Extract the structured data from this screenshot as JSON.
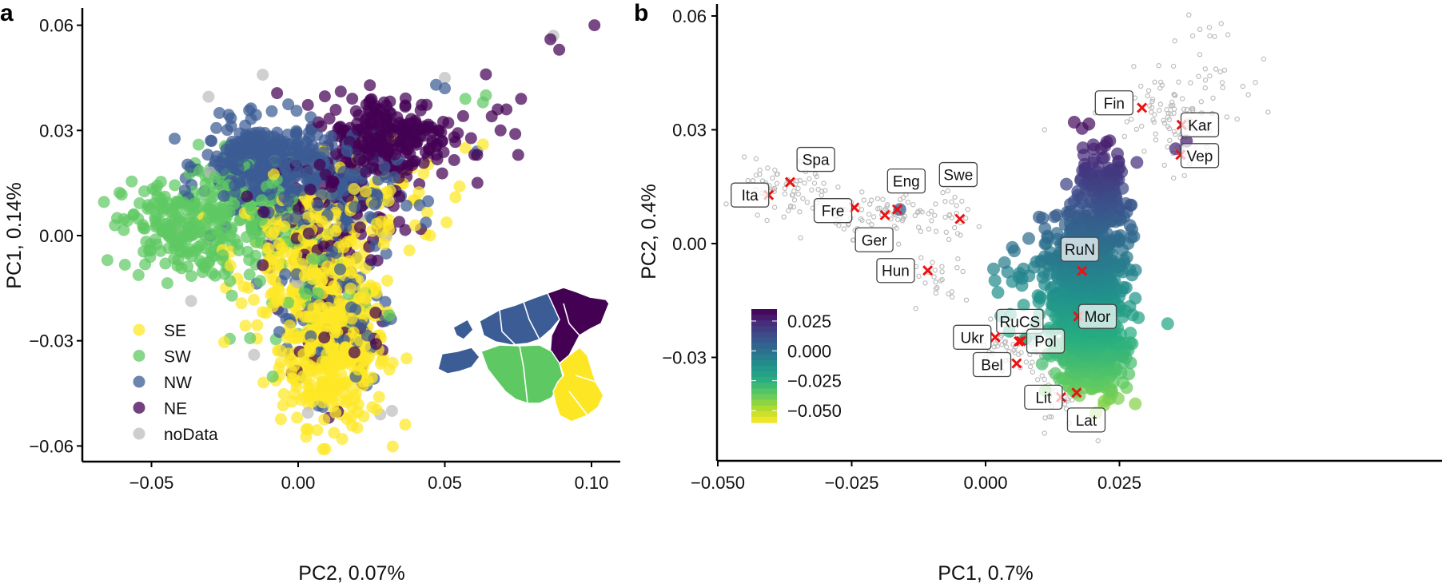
{
  "chart_data": [
    {
      "panel": "a",
      "type": "scatter",
      "title": "",
      "xlabel": "PC2, 0.07%",
      "ylabel": "PC1, 0.14%",
      "xlim": [
        -0.07,
        0.108
      ],
      "ylim": [
        -0.064,
        0.063
      ],
      "x_ticks": [
        -0.05,
        0.0,
        0.05,
        0.1
      ],
      "x_tick_labels": [
        "−0.05",
        "0.00",
        "0.05",
        "0.10"
      ],
      "y_ticks": [
        -0.06,
        -0.03,
        0.0,
        0.03,
        0.06
      ],
      "y_tick_labels": [
        "−0.06",
        "−0.03",
        "0.00",
        "0.03",
        "0.06"
      ],
      "grid": false,
      "legend_position": "bottom-left",
      "legend": [
        {
          "label": "SE",
          "color": "#FDE725"
        },
        {
          "label": "SW",
          "color": "#5EC962"
        },
        {
          "label": "NW",
          "color": "#3B5C94"
        },
        {
          "label": "NE",
          "color": "#440154"
        },
        {
          "label": "noData",
          "color": "#BEBEBE"
        }
      ],
      "series": [
        {
          "name": "SE",
          "color": "#FDE725",
          "clusters": [
            {
              "cx": 0.012,
              "cy": -0.032,
              "sx": 0.009,
              "sy": 0.011,
              "n": 420
            },
            {
              "cx": 0.002,
              "cy": -0.005,
              "sx": 0.012,
              "sy": 0.01,
              "n": 220
            },
            {
              "cx": 0.025,
              "cy": 0.01,
              "sx": 0.012,
              "sy": 0.01,
              "n": 70
            }
          ],
          "points": [
            [
              0.015,
              -0.058
            ],
            [
              0.055,
              0.014
            ],
            [
              0.063,
              0.026
            ],
            [
              0.045,
              0.0
            ],
            [
              0.057,
              0.025
            ]
          ]
        },
        {
          "name": "SW",
          "color": "#5EC962",
          "clusters": [
            {
              "cx": -0.04,
              "cy": 0.002,
              "sx": 0.01,
              "sy": 0.007,
              "n": 200
            },
            {
              "cx": -0.018,
              "cy": 0.008,
              "sx": 0.01,
              "sy": 0.008,
              "n": 140
            },
            {
              "cx": 0.005,
              "cy": -0.012,
              "sx": 0.01,
              "sy": 0.01,
              "n": 50
            }
          ],
          "points": [
            [
              -0.065,
              -0.007
            ],
            [
              0.063,
              0.038
            ],
            [
              0.064,
              0.04
            ],
            [
              0.057,
              0.039
            ]
          ]
        },
        {
          "name": "NW",
          "color": "#3B5C94",
          "clusters": [
            {
              "cx": -0.012,
              "cy": 0.02,
              "sx": 0.01,
              "sy": 0.006,
              "n": 380
            },
            {
              "cx": 0.01,
              "cy": 0.012,
              "sx": 0.012,
              "sy": 0.008,
              "n": 160
            },
            {
              "cx": 0.012,
              "cy": -0.02,
              "sx": 0.01,
              "sy": 0.012,
              "n": 90
            }
          ],
          "points": [
            [
              0.047,
              0.043
            ],
            [
              0.05,
              0.042
            ],
            [
              0.061,
              0.024
            ]
          ]
        },
        {
          "name": "NE",
          "color": "#440154",
          "clusters": [
            {
              "cx": 0.03,
              "cy": 0.028,
              "sx": 0.011,
              "sy": 0.006,
              "n": 260
            },
            {
              "cx": 0.012,
              "cy": 0.008,
              "sx": 0.012,
              "sy": 0.01,
              "n": 90
            },
            {
              "cx": 0.008,
              "cy": -0.025,
              "sx": 0.01,
              "sy": 0.012,
              "n": 40
            }
          ],
          "points": [
            [
              0.086,
              0.056
            ],
            [
              0.089,
              0.053
            ],
            [
              0.101,
              0.06
            ],
            [
              0.064,
              0.046
            ],
            [
              0.068,
              0.036
            ],
            [
              0.076,
              0.039
            ],
            [
              0.071,
              0.036
            ],
            [
              0.074,
              0.029
            ],
            [
              0.075,
              0.023
            ],
            [
              0.069,
              0.03
            ],
            [
              0.061,
              0.023
            ],
            [
              0.066,
              0.034
            ]
          ]
        },
        {
          "name": "noData",
          "color": "#BEBEBE",
          "clusters": [
            {
              "cx": 0.0,
              "cy": 0.0,
              "sx": 0.02,
              "sy": 0.02,
              "n": 14
            }
          ],
          "points": [
            [
              0.087,
              0.057
            ],
            [
              0.05,
              0.045
            ],
            [
              -0.03,
              0.018
            ],
            [
              0.028,
              -0.051
            ],
            [
              0.032,
              -0.05
            ],
            [
              0.03,
              0.0
            ],
            [
              -0.015,
              -0.034
            ]
          ]
        }
      ],
      "inset_map": {
        "description": "Map of Estonia colored by region",
        "regions": [
          {
            "region": "NW",
            "color": "#3B5C94"
          },
          {
            "region": "NE",
            "color": "#440154"
          },
          {
            "region": "SW",
            "color": "#5EC962"
          },
          {
            "region": "SE",
            "color": "#FDE725"
          }
        ]
      }
    },
    {
      "panel": "b",
      "type": "scatter",
      "title": "",
      "xlabel": "PC1, 0.7%",
      "ylabel": "PC2, 0.4%",
      "xlim": [
        -0.05,
        0.047
      ],
      "ylim": [
        -0.057,
        0.062
      ],
      "x_ticks": [
        -0.05,
        -0.025,
        0.0,
        0.025
      ],
      "x_tick_labels": [
        "−0.050",
        "−0.025",
        "0.000",
        "0.025"
      ],
      "y_ticks": [
        -0.03,
        0.0,
        0.03,
        0.06
      ],
      "y_tick_labels": [
        "−0.03",
        "0.00",
        "0.03",
        "0.06"
      ],
      "grid": false,
      "colorbar": {
        "position": "bottom-left",
        "palette": [
          "#440154",
          "#472D7B",
          "#3B528B",
          "#2C728E",
          "#21918C",
          "#28AE80",
          "#5EC962",
          "#ADDC30",
          "#FDE725"
        ],
        "range": [
          -0.06,
          0.035
        ],
        "ticks": [
          0.025,
          0.0,
          -0.025,
          -0.05
        ],
        "tick_labels": [
          "0.025",
          "0.000",
          "−0.025",
          "−0.050"
        ]
      },
      "estonian_clusters": [
        {
          "cx": 0.019,
          "cy": -0.012,
          "sx": 0.0035,
          "sy": 0.01,
          "n": 700,
          "value_from_y": true
        },
        {
          "cx": 0.02,
          "cy": -0.03,
          "sx": 0.003,
          "sy": 0.005,
          "n": 260,
          "value_from_y": true
        },
        {
          "cx": 0.021,
          "cy": 0.012,
          "sx": 0.003,
          "sy": 0.007,
          "n": 140,
          "value_from_y": true
        },
        {
          "cx": 0.01,
          "cy": -0.01,
          "sx": 0.006,
          "sy": 0.008,
          "n": 50,
          "value_from_y": true
        }
      ],
      "estonian_points": [
        [
          0.025,
          0.02
        ],
        [
          0.023,
          0.018
        ],
        [
          0.0375,
          0.027
        ],
        [
          0.0355,
          0.025
        ],
        [
          0.01,
          0.007
        ],
        [
          0.005,
          -0.001
        ],
        [
          -0.016,
          0.009
        ]
      ],
      "reference_cloud_color": "#BDBDBD",
      "reference_points_clusters": [
        {
          "cx": -0.037,
          "cy": 0.014,
          "sx": 0.004,
          "sy": 0.004,
          "n": 70
        },
        {
          "cx": -0.018,
          "cy": 0.008,
          "sx": 0.005,
          "sy": 0.003,
          "n": 70
        },
        {
          "cx": -0.006,
          "cy": 0.006,
          "sx": 0.003,
          "sy": 0.003,
          "n": 25
        },
        {
          "cx": -0.008,
          "cy": -0.01,
          "sx": 0.003,
          "sy": 0.004,
          "n": 25
        },
        {
          "cx": 0.006,
          "cy": -0.028,
          "sx": 0.004,
          "sy": 0.004,
          "n": 70
        },
        {
          "cx": 0.014,
          "cy": -0.04,
          "sx": 0.002,
          "sy": 0.004,
          "n": 25
        },
        {
          "cx": 0.033,
          "cy": 0.036,
          "sx": 0.005,
          "sy": 0.005,
          "n": 60
        },
        {
          "cx": 0.04,
          "cy": 0.045,
          "sx": 0.004,
          "sy": 0.006,
          "n": 35
        },
        {
          "cx": 0.038,
          "cy": 0.025,
          "sx": 0.003,
          "sy": 0.004,
          "n": 20
        }
      ],
      "reference_points_extra": [
        [
          0.044,
          0.058
        ],
        [
          0.021,
          -0.052
        ],
        [
          0.011,
          -0.05
        ],
        [
          0.011,
          0.03
        ],
        [
          0.024,
          0.023
        ]
      ],
      "populations": [
        {
          "label": "Ita",
          "x": -0.0405,
          "y": 0.0128,
          "label_dx": -0.0035,
          "label_dy": 0.0
        },
        {
          "label": "Spa",
          "x": -0.0365,
          "y": 0.0162,
          "label_dx": 0.0048,
          "label_dy": 0.006
        },
        {
          "label": "Fre",
          "x": -0.0245,
          "y": 0.0095,
          "label_dx": -0.004,
          "label_dy": -0.0008
        },
        {
          "label": "Ger",
          "x": -0.0188,
          "y": 0.0075,
          "label_dx": -0.002,
          "label_dy": -0.0065
        },
        {
          "label": "Eng",
          "x": -0.0165,
          "y": 0.009,
          "label_dx": 0.0017,
          "label_dy": 0.0075
        },
        {
          "label": "Swe",
          "x": -0.0048,
          "y": 0.0065,
          "label_dx": -0.0003,
          "label_dy": 0.0117
        },
        {
          "label": "Hun",
          "x": -0.0108,
          "y": -0.0071,
          "label_dx": -0.006,
          "label_dy": 0.0
        },
        {
          "label": "Fin",
          "x": 0.0292,
          "y": 0.0358,
          "label_dx": -0.0052,
          "label_dy": 0.0013
        },
        {
          "label": "Kar",
          "x": 0.0366,
          "y": 0.0313,
          "label_dx": 0.0034,
          "label_dy": 0.0
        },
        {
          "label": "Vep",
          "x": 0.0364,
          "y": 0.0234,
          "label_dx": 0.0036,
          "label_dy": -0.0002
        },
        {
          "label": "RuN",
          "x": 0.018,
          "y": -0.0072,
          "label_dx": -0.0004,
          "label_dy": 0.0057
        },
        {
          "label": "Mor",
          "x": 0.0173,
          "y": -0.0192,
          "label_dx": 0.0036,
          "label_dy": 0.0
        },
        {
          "label": "RuCS",
          "x": 0.0062,
          "y": -0.0258,
          "label_dx": 0.0002,
          "label_dy": 0.0053
        },
        {
          "label": "Ukr",
          "x": 0.0018,
          "y": -0.0247,
          "label_dx": -0.0043,
          "label_dy": 0.0
        },
        {
          "label": "Pol",
          "x": 0.0066,
          "y": -0.0257,
          "label_dx": 0.0046,
          "label_dy": 0.0
        },
        {
          "label": "Bel",
          "x": 0.0058,
          "y": -0.0316,
          "label_dx": -0.0046,
          "label_dy": -0.0003
        },
        {
          "label": "Lit",
          "x": 0.0141,
          "y": -0.0405,
          "label_dx": -0.0033,
          "label_dy": 0.0
        },
        {
          "label": "Lat",
          "x": 0.017,
          "y": -0.0393,
          "label_dx": 0.0018,
          "label_dy": -0.0072
        }
      ],
      "marker_color": "#EE1111"
    }
  ],
  "panel_labels": {
    "a": "a",
    "b": "b"
  }
}
